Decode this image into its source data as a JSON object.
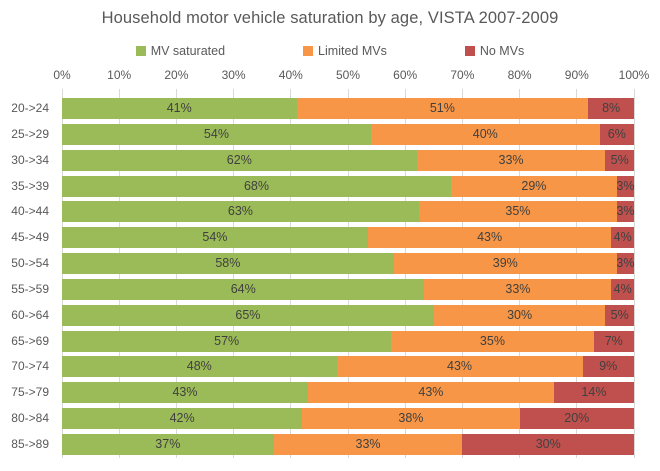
{
  "chart_data": {
    "type": "bar",
    "orientation": "horizontal",
    "stacked": true,
    "title": "Household motor vehicle saturation by age, VISTA 2007-2009",
    "legend_position": "top",
    "grid": true,
    "xlim": [
      0,
      100
    ],
    "x_tick_labels": [
      "0%",
      "10%",
      "20%",
      "30%",
      "40%",
      "50%",
      "60%",
      "70%",
      "80%",
      "90%",
      "100%"
    ],
    "categories": [
      "20->24",
      "25->29",
      "30->34",
      "35->39",
      "40->44",
      "45->49",
      "50->54",
      "55->59",
      "60->64",
      "65->69",
      "70->74",
      "75->79",
      "80->84",
      "85->89"
    ],
    "series": [
      {
        "name": "MV saturated",
        "color": "#9bbb59",
        "values": [
          41,
          54,
          62,
          68,
          63,
          54,
          58,
          64,
          65,
          57,
          48,
          43,
          42,
          37
        ]
      },
      {
        "name": "Limited MVs",
        "color": "#f79646",
        "values": [
          51,
          40,
          33,
          29,
          35,
          43,
          39,
          33,
          30,
          35,
          43,
          43,
          38,
          33
        ]
      },
      {
        "name": "No MVs",
        "color": "#c0504d",
        "values": [
          8,
          6,
          5,
          3,
          3,
          4,
          3,
          4,
          5,
          7,
          9,
          14,
          20,
          30
        ]
      }
    ],
    "value_suffix": "%",
    "colors": {
      "title_text": "#595959",
      "axis_text": "#595959",
      "data_label_text": "#404040",
      "gridline": "#d9d9d9",
      "background": "#ffffff"
    }
  }
}
